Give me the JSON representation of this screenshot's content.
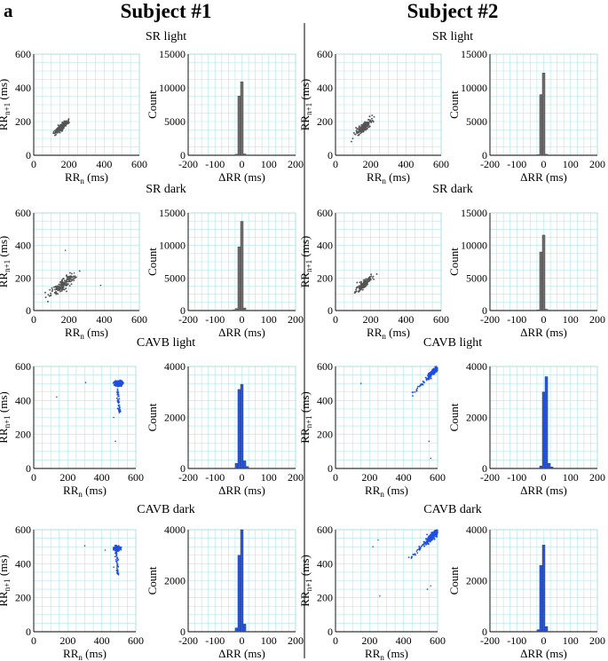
{
  "figure": {
    "panel_label": "a",
    "subjects": [
      "Subject #1",
      "Subject #2"
    ]
  },
  "axis_labels": {
    "scatter_x": "RR",
    "scatter_x_sub": "n",
    "scatter_x_unit": "(ms)",
    "scatter_y": "RR",
    "scatter_y_sub": "n+1",
    "scatter_y_unit": "(ms)",
    "hist_x": "ΔRR (ms)",
    "hist_y": "Count"
  },
  "colors": {
    "grid": "#aee8e8",
    "sr_points": "#555555",
    "sr_bars": "#6e6e6e",
    "cavb_points": "#1f4fe0",
    "cavb_bars": "#2457e8"
  },
  "chart_data": [
    {
      "subject": "Subject #1",
      "condition": "SR light",
      "type": "scatter",
      "xlabel": "RRn (ms)",
      "ylabel": "RRn+1 (ms)",
      "xlim": [
        0,
        600
      ],
      "ylim": [
        0,
        600
      ],
      "xticks": [
        0,
        200,
        400,
        600
      ],
      "yticks": [
        0,
        200,
        400,
        600
      ],
      "cluster": {
        "center": [
          160,
          170
        ],
        "spread": 20,
        "correlated": true
      },
      "outliers": []
    },
    {
      "subject": "Subject #1",
      "condition": "SR light",
      "type": "bar",
      "xlabel": "ΔRR (ms)",
      "ylabel": "Count",
      "xlim": [
        -200,
        200
      ],
      "ylim": [
        0,
        15000
      ],
      "xticks": [
        -200,
        -100,
        0,
        100,
        200
      ],
      "yticks": [
        0,
        5000,
        10000,
        15000
      ],
      "bin_width": 10,
      "bins": [
        {
          "x": -20,
          "count": 150
        },
        {
          "x": -10,
          "count": 8800
        },
        {
          "x": 0,
          "count": 10900
        },
        {
          "x": 10,
          "count": 200
        }
      ]
    },
    {
      "subject": "Subject #2",
      "condition": "SR light",
      "type": "scatter",
      "xlabel": "RRn (ms)",
      "ylabel": "RRn+1 (ms)",
      "xlim": [
        0,
        600
      ],
      "ylim": [
        0,
        600
      ],
      "xticks": [
        0,
        200,
        400,
        600
      ],
      "yticks": [
        0,
        200,
        400,
        600
      ],
      "cluster": {
        "center": [
          160,
          165
        ],
        "spread": 22,
        "correlated": true
      },
      "outliers": []
    },
    {
      "subject": "Subject #2",
      "condition": "SR light",
      "type": "bar",
      "xlabel": "ΔRR (ms)",
      "ylabel": "Count",
      "xlim": [
        -200,
        200
      ],
      "ylim": [
        0,
        15000
      ],
      "xticks": [
        -200,
        -100,
        0,
        100,
        200
      ],
      "yticks": [
        0,
        5000,
        10000,
        15000
      ],
      "bin_width": 10,
      "bins": [
        {
          "x": -20,
          "count": 100
        },
        {
          "x": -10,
          "count": 9000
        },
        {
          "x": 0,
          "count": 12200
        },
        {
          "x": 10,
          "count": 150
        }
      ]
    },
    {
      "subject": "Subject #1",
      "condition": "SR dark",
      "type": "scatter",
      "xlabel": "RRn (ms)",
      "ylabel": "RRn+1 (ms)",
      "xlim": [
        0,
        600
      ],
      "ylim": [
        0,
        600
      ],
      "xticks": [
        0,
        200,
        400,
        600
      ],
      "yticks": [
        0,
        200,
        400,
        600
      ],
      "cluster": {
        "center": [
          170,
          165
        ],
        "spread": 35,
        "correlated": true
      },
      "outliers": [
        [
          180,
          370
        ],
        [
          380,
          155
        ],
        [
          120,
          130
        ],
        [
          230,
          230
        ]
      ]
    },
    {
      "subject": "Subject #1",
      "condition": "SR dark",
      "type": "bar",
      "xlabel": "ΔRR (ms)",
      "ylabel": "Count",
      "xlim": [
        -200,
        200
      ],
      "ylim": [
        0,
        15000
      ],
      "xticks": [
        -200,
        -100,
        0,
        100,
        200
      ],
      "yticks": [
        0,
        5000,
        10000,
        15000
      ],
      "bin_width": 10,
      "bins": [
        {
          "x": -30,
          "count": 100
        },
        {
          "x": -20,
          "count": 300
        },
        {
          "x": -10,
          "count": 9800
        },
        {
          "x": 0,
          "count": 13700
        },
        {
          "x": 10,
          "count": 400
        }
      ]
    },
    {
      "subject": "Subject #2",
      "condition": "SR dark",
      "type": "scatter",
      "xlabel": "RRn (ms)",
      "ylabel": "RRn+1 (ms)",
      "xlim": [
        0,
        600
      ],
      "ylim": [
        0,
        600
      ],
      "xticks": [
        0,
        200,
        400,
        600
      ],
      "yticks": [
        0,
        200,
        400,
        600
      ],
      "cluster": {
        "center": [
          160,
          160
        ],
        "spread": 22,
        "correlated": true
      },
      "outliers": [
        [
          210,
          200
        ]
      ]
    },
    {
      "subject": "Subject #2",
      "condition": "SR dark",
      "type": "bar",
      "xlabel": "ΔRR (ms)",
      "ylabel": "Count",
      "xlim": [
        -200,
        200
      ],
      "ylim": [
        0,
        15000
      ],
      "xticks": [
        -200,
        -100,
        0,
        100,
        200
      ],
      "yticks": [
        0,
        5000,
        10000,
        15000
      ],
      "bin_width": 10,
      "bins": [
        {
          "x": -20,
          "count": 100
        },
        {
          "x": -10,
          "count": 9000
        },
        {
          "x": 0,
          "count": 11600
        },
        {
          "x": 10,
          "count": 200
        }
      ]
    },
    {
      "subject": "Subject #1",
      "condition": "CAVB light",
      "type": "scatter",
      "xlabel": "RRn (ms)",
      "ylabel": "RRn+1 (ms)",
      "xlim": [
        0,
        600
      ],
      "ylim": [
        0,
        600
      ],
      "xticks": [
        0,
        200,
        400,
        600
      ],
      "yticks": [
        0,
        200,
        400,
        600
      ],
      "cluster": {
        "center": [
          500,
          500
        ],
        "spread": 18,
        "correlated": false
      },
      "tail": {
        "from": [
          490,
          470
        ],
        "to": [
          505,
          330
        ]
      },
      "outliers": [
        [
          135,
          420
        ],
        [
          305,
          505
        ],
        [
          480,
          160
        ],
        [
          470,
          300
        ]
      ]
    },
    {
      "subject": "Subject #1",
      "condition": "CAVB light",
      "type": "bar",
      "xlabel": "ΔRR (ms)",
      "ylabel": "Count",
      "xlim": [
        -200,
        200
      ],
      "ylim": [
        0,
        4000
      ],
      "xticks": [
        -200,
        -100,
        0,
        100,
        200
      ],
      "yticks": [
        0,
        2000,
        4000
      ],
      "bin_width": 10,
      "bins": [
        {
          "x": -20,
          "count": 200
        },
        {
          "x": -10,
          "count": 3100
        },
        {
          "x": 0,
          "count": 3300
        },
        {
          "x": 10,
          "count": 300
        },
        {
          "x": 20,
          "count": 80
        }
      ]
    },
    {
      "subject": "Subject #2",
      "condition": "CAVB light",
      "type": "scatter",
      "xlabel": "RRn (ms)",
      "ylabel": "RRn+1 (ms)",
      "xlim": [
        0,
        600
      ],
      "ylim": [
        0,
        600
      ],
      "xticks": [
        0,
        200,
        400,
        600
      ],
      "yticks": [
        0,
        200,
        400,
        600
      ],
      "cluster": {
        "center": [
          570,
          565
        ],
        "spread": 14,
        "correlated": true
      },
      "streak": {
        "from": [
          455,
          440
        ],
        "to": [
          600,
          590
        ]
      },
      "outliers": [
        [
          150,
          500
        ],
        [
          560,
          60
        ],
        [
          550,
          160
        ]
      ]
    },
    {
      "subject": "Subject #2",
      "condition": "CAVB light",
      "type": "bar",
      "xlabel": "ΔRR (ms)",
      "ylabel": "Count",
      "xlim": [
        -200,
        200
      ],
      "ylim": [
        0,
        4000
      ],
      "xticks": [
        -200,
        -100,
        0,
        100,
        200
      ],
      "yticks": [
        0,
        2000,
        4000
      ],
      "bin_width": 10,
      "bins": [
        {
          "x": -10,
          "count": 100
        },
        {
          "x": 0,
          "count": 3000
        },
        {
          "x": 10,
          "count": 3600
        },
        {
          "x": 20,
          "count": 200
        },
        {
          "x": 30,
          "count": 60
        }
      ]
    },
    {
      "subject": "Subject #1",
      "condition": "CAVB dark",
      "type": "scatter",
      "xlabel": "RRn (ms)",
      "ylabel": "RRn+1 (ms)",
      "xlim": [
        0,
        600
      ],
      "ylim": [
        0,
        600
      ],
      "xticks": [
        0,
        200,
        400,
        600
      ],
      "yticks": [
        0,
        200,
        400,
        600
      ],
      "cluster": {
        "center": [
          490,
          490
        ],
        "spread": 14,
        "correlated": false
      },
      "tail": {
        "from": [
          485,
          470
        ],
        "to": [
          495,
          330
        ]
      },
      "outliers": [
        [
          300,
          505
        ],
        [
          420,
          480
        ],
        [
          470,
          380
        ]
      ]
    },
    {
      "subject": "Subject #1",
      "condition": "CAVB dark",
      "type": "bar",
      "xlabel": "ΔRR (ms)",
      "ylabel": "Count",
      "xlim": [
        -200,
        200
      ],
      "ylim": [
        0,
        4000
      ],
      "xticks": [
        -200,
        -100,
        0,
        100,
        200
      ],
      "yticks": [
        0,
        2000,
        4000
      ],
      "bin_width": 10,
      "bins": [
        {
          "x": -20,
          "count": 150
        },
        {
          "x": -10,
          "count": 3000
        },
        {
          "x": 0,
          "count": 4000
        },
        {
          "x": 10,
          "count": 300
        }
      ]
    },
    {
      "subject": "Subject #2",
      "condition": "CAVB dark",
      "type": "scatter",
      "xlabel": "RRn (ms)",
      "ylabel": "RRn+1 (ms)",
      "xlim": [
        0,
        600
      ],
      "ylim": [
        0,
        600
      ],
      "xticks": [
        0,
        200,
        400,
        600
      ],
      "yticks": [
        0,
        200,
        400,
        600
      ],
      "cluster": {
        "center": [
          565,
          560
        ],
        "spread": 22,
        "correlated": true
      },
      "streak": {
        "from": [
          440,
          430
        ],
        "to": [
          600,
          590
        ]
      },
      "outliers": [
        [
          250,
          540
        ],
        [
          220,
          500
        ],
        [
          540,
          250
        ],
        [
          560,
          270
        ],
        [
          260,
          210
        ]
      ]
    },
    {
      "subject": "Subject #2",
      "condition": "CAVB dark",
      "type": "bar",
      "xlabel": "ΔRR (ms)",
      "ylabel": "Count",
      "xlim": [
        -200,
        200
      ],
      "ylim": [
        0,
        4000
      ],
      "xticks": [
        -200,
        -100,
        0,
        100,
        200
      ],
      "yticks": [
        0,
        2000,
        4000
      ],
      "bin_width": 10,
      "bins": [
        {
          "x": -20,
          "count": 80
        },
        {
          "x": -10,
          "count": 2600
        },
        {
          "x": 0,
          "count": 3400
        },
        {
          "x": 10,
          "count": 200
        }
      ]
    }
  ]
}
